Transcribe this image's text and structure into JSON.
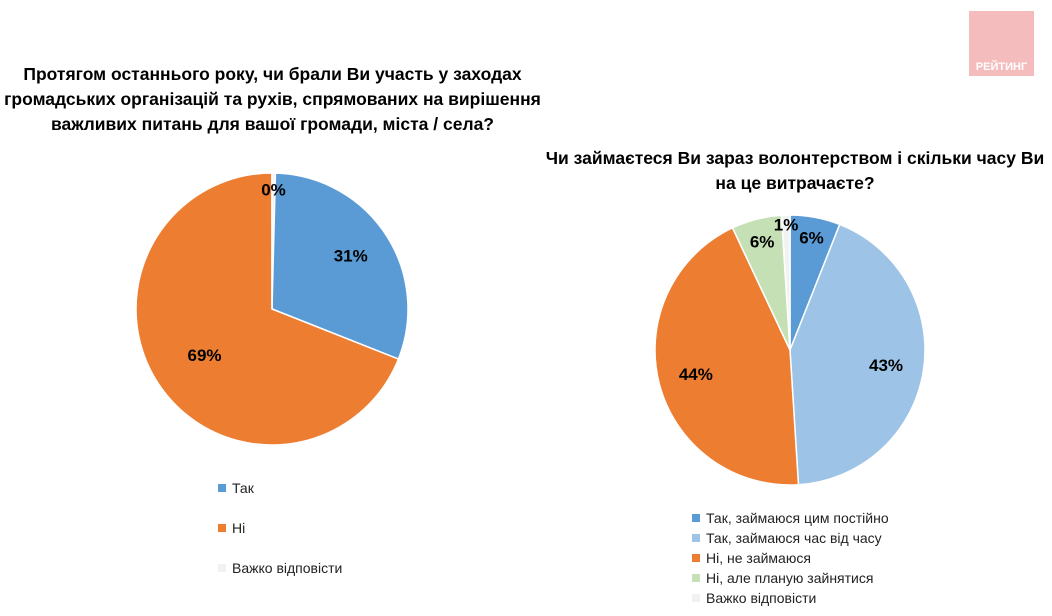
{
  "logo_text": "РЕЙТИНГ",
  "chart_data": [
    {
      "type": "pie",
      "title": "Протягом останнього року, чи брали Ви участь у заходах громадських організацій та рухів, спрямованих на вирішення важливих питань для вашої громади, міста / села?",
      "categories": [
        "Так",
        "Ні",
        "Важко відповісти"
      ],
      "values": [
        31,
        69,
        0
      ],
      "labels": [
        "31%",
        "69%",
        "0%"
      ],
      "colors": [
        "#5b9bd5",
        "#ed7d31",
        "#f2f2f2"
      ],
      "legend": "bottom"
    },
    {
      "type": "pie",
      "title": "Чи займаєтеся Ви зараз волонтерством і скільки часу Ви на це витрачаєте?",
      "categories": [
        "Так, займаюся цим постійно",
        "Так, займаюся час від часу",
        "Ні, не займаюся",
        "Ні, але планую зайнятися",
        "Важко відповісти"
      ],
      "values": [
        6,
        43,
        44,
        6,
        1
      ],
      "labels": [
        "6%",
        "43%",
        "44%",
        "6%",
        "1%"
      ],
      "colors": [
        "#5b9bd5",
        "#9dc3e6",
        "#ed7d31",
        "#c5e0b4",
        "#f2f2f2"
      ],
      "legend": "bottom"
    }
  ]
}
